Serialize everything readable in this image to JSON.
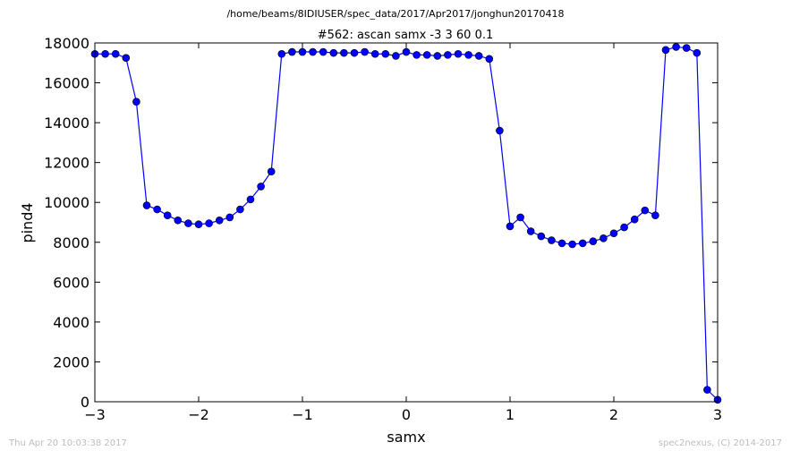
{
  "page": {
    "footer_left": "Thu Apr 20 10:03:38 2017",
    "footer_right": "spec2nexus, (C) 2014-2017"
  },
  "chart_data": {
    "type": "line",
    "suptitle": "/home/beams/8IDIUSER/spec_data/2017/Apr2017/jonghun20170418",
    "title": "#562: ascan  samx -3 3  60 0.1",
    "xlabel": "samx",
    "ylabel": "pind4",
    "xlim": [
      -3,
      3
    ],
    "ylim": [
      0,
      18000
    ],
    "xticks": [
      -3,
      -2,
      -1,
      0,
      1,
      2,
      3
    ],
    "xtick_labels": [
      "−3",
      "−2",
      "−1",
      "0",
      "1",
      "2",
      "3"
    ],
    "yticks": [
      0,
      2000,
      4000,
      6000,
      8000,
      10000,
      12000,
      14000,
      16000,
      18000
    ],
    "ytick_labels": [
      "0",
      "2000",
      "4000",
      "6000",
      "8000",
      "10000",
      "12000",
      "14000",
      "16000",
      "18000"
    ],
    "grid": false,
    "line_color": "#0000ff",
    "marker_color": "#0000ff",
    "marker": "circle",
    "x": [
      -3.0,
      -2.9,
      -2.8,
      -2.7,
      -2.6,
      -2.5,
      -2.4,
      -2.3,
      -2.2,
      -2.1,
      -2.0,
      -1.9,
      -1.8,
      -1.7,
      -1.6,
      -1.5,
      -1.4,
      -1.3,
      -1.2,
      -1.1,
      -1.0,
      -0.9,
      -0.8,
      -0.7,
      -0.6,
      -0.5,
      -0.4,
      -0.3,
      -0.2,
      -0.1,
      0.0,
      0.1,
      0.2,
      0.3,
      0.4,
      0.5,
      0.6,
      0.7,
      0.8,
      0.9,
      1.0,
      1.1,
      1.2,
      1.3,
      1.4,
      1.5,
      1.6,
      1.7,
      1.8,
      1.9,
      2.0,
      2.1,
      2.2,
      2.3,
      2.4,
      2.5,
      2.6,
      2.7,
      2.8,
      2.9,
      3.0
    ],
    "y": [
      17450,
      17450,
      17450,
      17250,
      15050,
      9850,
      9650,
      9350,
      9100,
      8950,
      8900,
      8950,
      9100,
      9250,
      9650,
      10150,
      10800,
      11550,
      17450,
      17550,
      17550,
      17550,
      17550,
      17500,
      17500,
      17500,
      17550,
      17450,
      17450,
      17350,
      17550,
      17400,
      17400,
      17350,
      17400,
      17450,
      17400,
      17350,
      17200,
      13600,
      8800,
      9250,
      8550,
      8300,
      8100,
      7950,
      7900,
      7950,
      8050,
      8200,
      8450,
      8750,
      9150,
      9600,
      9350,
      17650,
      17800,
      17750,
      17500,
      600,
      100
    ]
  }
}
